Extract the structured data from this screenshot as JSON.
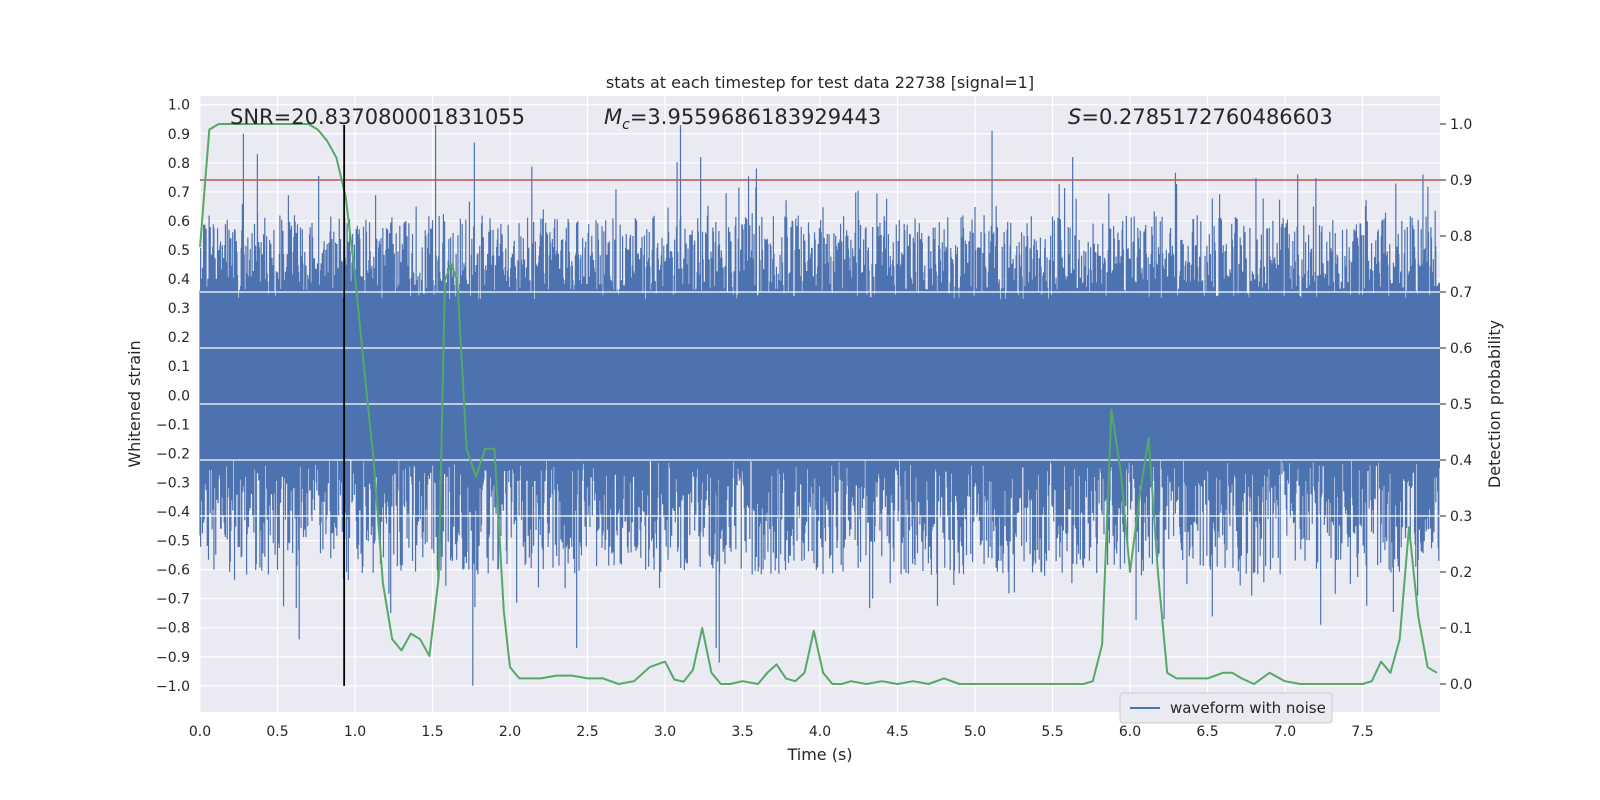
{
  "chart_data": {
    "type": "line",
    "title": "stats at each timestep for test data 22738 [signal=1]",
    "xlabel": "Time (s)",
    "ylabel_left": "Whitened strain",
    "ylabel_right": "Detection probability",
    "xlim": [
      0.0,
      8.0
    ],
    "ylim_left": [
      -1.09,
      1.03
    ],
    "ylim_right": [
      -0.05,
      1.05
    ],
    "xticks": [
      0.0,
      0.5,
      1.0,
      1.5,
      2.0,
      2.5,
      3.0,
      3.5,
      4.0,
      4.5,
      5.0,
      5.5,
      6.0,
      6.5,
      7.0,
      7.5
    ],
    "xtick_labels": [
      "0.0",
      "0.5",
      "1.0",
      "1.5",
      "2.0",
      "2.5",
      "3.0",
      "3.5",
      "4.0",
      "4.5",
      "5.0",
      "5.5",
      "6.0",
      "6.5",
      "7.0",
      "7.5"
    ],
    "yticks_left": [
      1.0,
      0.9,
      0.8,
      0.7,
      0.6,
      0.5,
      0.4,
      0.3,
      0.2,
      0.1,
      0.0,
      -0.1,
      -0.2,
      -0.3,
      -0.4,
      -0.5,
      -0.6,
      -0.7,
      -0.8,
      -0.9,
      -1.0
    ],
    "ytick_labels_left": [
      "1.0",
      "0.9",
      "0.8",
      "0.7",
      "0.6",
      "0.5",
      "0.4",
      "0.3",
      "0.2",
      "0.1",
      "0.0",
      "−0.1",
      "−0.2",
      "−0.3",
      "−0.4",
      "−0.5",
      "−0.6",
      "−0.7",
      "−0.8",
      "−0.9",
      "−1.0"
    ],
    "yticks_right": [
      1.0,
      0.9,
      0.8,
      0.7,
      0.6,
      0.5,
      0.4,
      0.3,
      0.2,
      0.1,
      0.0
    ],
    "ytick_labels_right": [
      "1.0",
      "0.9",
      "0.8",
      "0.7",
      "0.6",
      "0.5",
      "0.4",
      "0.3",
      "0.2",
      "0.1",
      "0.0"
    ],
    "annotations": {
      "snr_label": "SNR",
      "snr_value": "=20.837080001831055",
      "mc_symbol": "M",
      "mc_subscript": "c",
      "mc_value": "=3.9559686183929443",
      "s_symbol": "S",
      "s_value": "=0.2785172760486603"
    },
    "threshold": {
      "value": 0.9,
      "axis": "right",
      "color": "#c44e52"
    },
    "marker_line": {
      "x": 0.93,
      "y_from": -1.0,
      "y_to": 0.93,
      "color": "#000000"
    },
    "legend": {
      "label": "waveform with noise",
      "location": "bottom-right"
    },
    "waveform": {
      "name": "waveform with noise",
      "color": "#4c72b0",
      "sample_count": 2048,
      "upper_range": [
        0.33,
        0.62
      ],
      "lower_range": [
        -0.62,
        -0.22
      ],
      "upper_spikes": [
        [
          0.28,
          0.9
        ],
        [
          0.37,
          0.83
        ],
        [
          1.52,
          0.93
        ],
        [
          1.77,
          0.87
        ],
        [
          3.1,
          0.93
        ],
        [
          3.23,
          0.82
        ],
        [
          5.11,
          0.91
        ],
        [
          5.63,
          0.82
        ],
        [
          7.89,
          0.76
        ]
      ],
      "lower_spikes": [
        [
          0.64,
          -0.84
        ],
        [
          1.76,
          -1.0
        ],
        [
          2.43,
          -0.87
        ],
        [
          3.35,
          -0.92
        ],
        [
          3.33,
          -0.87
        ],
        [
          6.22,
          -0.77
        ],
        [
          7.23,
          -0.79
        ]
      ]
    },
    "probability": {
      "name": "detection probability",
      "color": "#55a868",
      "x": [
        0.0,
        0.06,
        0.12,
        0.2,
        0.3,
        0.4,
        0.5,
        0.6,
        0.7,
        0.76,
        0.82,
        0.88,
        0.94,
        1.0,
        1.06,
        1.12,
        1.18,
        1.24,
        1.3,
        1.36,
        1.42,
        1.48,
        1.54,
        1.58,
        1.62,
        1.66,
        1.72,
        1.78,
        1.84,
        1.9,
        1.96,
        2.0,
        2.06,
        2.12,
        2.2,
        2.3,
        2.4,
        2.5,
        2.6,
        2.7,
        2.8,
        2.9,
        3.0,
        3.06,
        3.12,
        3.18,
        3.24,
        3.3,
        3.36,
        3.42,
        3.5,
        3.6,
        3.66,
        3.72,
        3.78,
        3.84,
        3.9,
        3.96,
        4.02,
        4.08,
        4.14,
        4.2,
        4.3,
        4.4,
        4.5,
        4.6,
        4.7,
        4.8,
        4.9,
        5.0,
        5.1,
        5.2,
        5.3,
        5.4,
        5.5,
        5.6,
        5.7,
        5.76,
        5.82,
        5.88,
        5.94,
        6.0,
        6.06,
        6.12,
        6.18,
        6.24,
        6.3,
        6.4,
        6.5,
        6.6,
        6.66,
        6.72,
        6.8,
        6.9,
        7.0,
        7.1,
        7.2,
        7.3,
        7.4,
        7.5,
        7.56,
        7.62,
        7.68,
        7.74,
        7.8,
        7.86,
        7.92,
        7.98
      ],
      "y": [
        0.78,
        0.99,
        1.0,
        1.0,
        1.0,
        1.0,
        1.0,
        1.0,
        1.0,
        0.99,
        0.97,
        0.94,
        0.87,
        0.73,
        0.56,
        0.4,
        0.18,
        0.08,
        0.06,
        0.09,
        0.08,
        0.05,
        0.19,
        0.72,
        0.75,
        0.72,
        0.42,
        0.37,
        0.42,
        0.42,
        0.13,
        0.03,
        0.01,
        0.01,
        0.01,
        0.015,
        0.015,
        0.01,
        0.01,
        0.0,
        0.005,
        0.03,
        0.04,
        0.008,
        0.004,
        0.025,
        0.1,
        0.02,
        0.0,
        0.0,
        0.005,
        0.0,
        0.02,
        0.035,
        0.01,
        0.005,
        0.02,
        0.095,
        0.02,
        0.0,
        0.0,
        0.005,
        0.0,
        0.005,
        0.0,
        0.005,
        0.0,
        0.01,
        0.0,
        0.0,
        0.0,
        0.0,
        0.0,
        0.0,
        0.0,
        0.0,
        0.0,
        0.005,
        0.07,
        0.49,
        0.38,
        0.2,
        0.33,
        0.44,
        0.2,
        0.02,
        0.01,
        0.01,
        0.01,
        0.02,
        0.02,
        0.01,
        0.0,
        0.02,
        0.005,
        0.0,
        0.0,
        0.0,
        0.0,
        0.0,
        0.005,
        0.04,
        0.02,
        0.08,
        0.28,
        0.12,
        0.03,
        0.02
      ]
    }
  }
}
